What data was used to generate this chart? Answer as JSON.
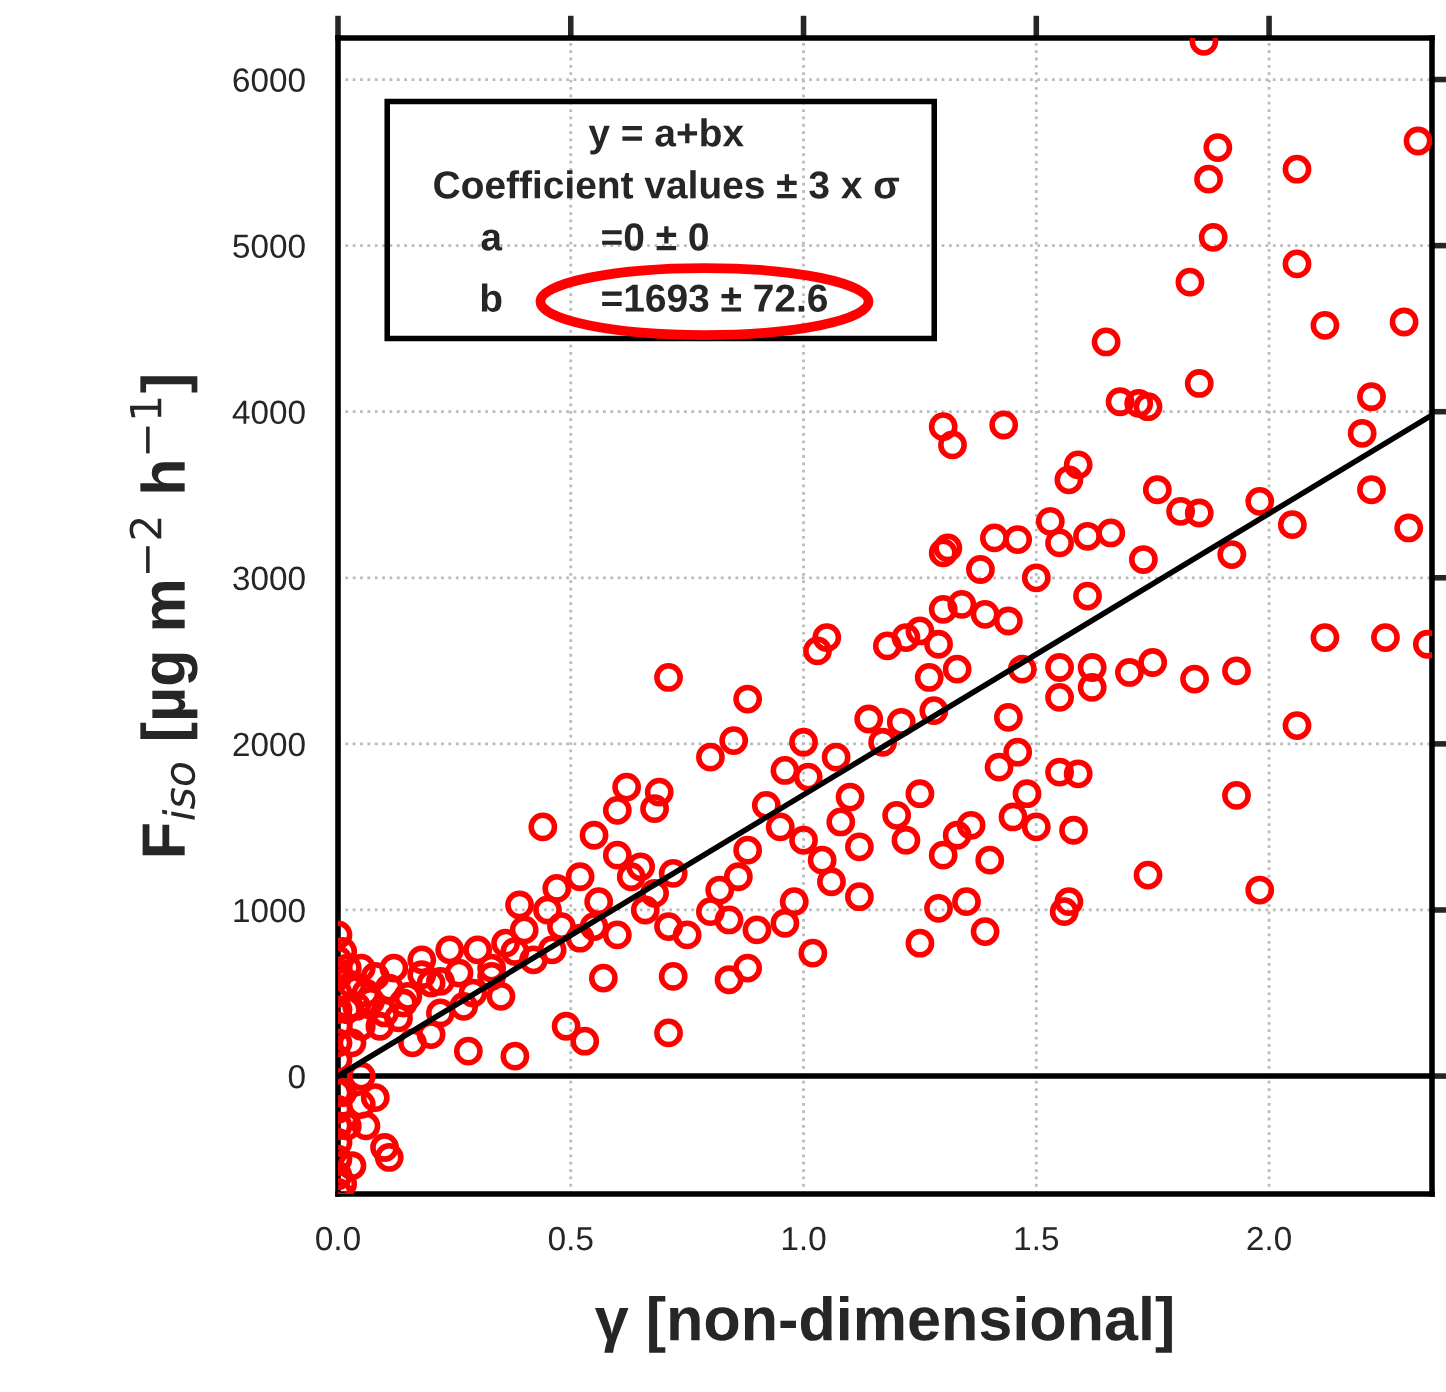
{
  "chart_data": {
    "type": "scatter",
    "xlabel": "γ [non-dimensional]",
    "ylabel": "F$_{iso}$ [µg m$^{−2}$ h$^{−1}$]",
    "xlim": [
      0,
      2.35
    ],
    "ylim": [
      -710,
      6250
    ],
    "xticks": [
      {
        "value": 0,
        "label": "0.0"
      },
      {
        "value": 0.5,
        "label": "0.5"
      },
      {
        "value": 1,
        "label": "1.0"
      },
      {
        "value": 1.5,
        "label": "1.5"
      },
      {
        "value": 2,
        "label": "2.0"
      }
    ],
    "yticks": [
      0,
      1000,
      2000,
      3000,
      4000,
      5000,
      6000
    ],
    "grid": true,
    "annotations": [
      "y = a+bx",
      "Coefficient values ± 3 x σ",
      "a",
      "=0 ± 0",
      "b",
      "=1693 ± 72.6"
    ],
    "ref_lines": [
      {
        "axis": "y",
        "value": 0,
        "color": "#000000"
      }
    ],
    "series": [
      {
        "marker": "circle",
        "color": "#ff0000",
        "x": [
          1.86,
          1.89,
          1.87,
          2.06,
          2.32,
          1.88,
          2.06,
          1.83,
          2.12,
          1.65,
          1.85,
          2.29,
          1.72,
          1.74,
          1.68,
          1.3,
          1.32,
          1.43,
          1.57,
          1.59,
          1.76,
          2.22,
          2.2,
          2.22,
          1.81,
          1.85,
          1.92,
          1.98,
          2.05,
          2.3,
          1.73,
          1.53,
          1.55,
          1.61,
          1.66,
          1.61,
          1.5,
          1.46,
          1.41,
          1.31,
          1.38,
          1.3,
          1.34,
          1.3,
          1.29,
          1.39,
          1.44,
          1.22,
          1.05,
          1.03,
          1.18,
          1.25,
          1.27,
          1.33,
          1.44,
          1.47,
          1.55,
          1.62,
          1.75,
          1.84,
          1.62,
          1.7,
          1.55,
          2.12,
          2.25,
          2.34,
          2.06,
          1.93,
          1.93,
          1.98,
          1.74,
          1.57,
          1.56,
          1.39,
          1.35,
          1.29,
          1.25,
          1.5,
          1.58,
          1.59,
          1.55,
          1.46,
          1.42,
          1.36,
          1.33,
          1.22,
          1.12,
          1.04,
          1.06,
          1.12,
          1.0,
          0.95,
          0.88,
          0.86,
          0.82,
          0.8,
          0.75,
          0.72,
          0.65,
          0.6,
          0.55,
          0.52,
          0.47,
          0.44,
          0.39,
          0.38,
          0.33,
          0.29,
          0.22,
          0.18,
          0.14,
          0.1,
          0.62,
          0.6,
          0.69,
          0.68,
          0.8,
          0.85,
          0.88,
          0.96,
          1.0,
          1.07,
          1.14,
          1.17,
          1.01,
          0.71,
          0.68,
          0.71,
          0.72,
          0.71,
          0.84,
          0.84,
          0.9,
          0.96,
          1.02,
          0.88,
          0.57,
          0.53,
          0.49,
          0.38,
          0.28,
          0.2,
          0.13,
          0.6,
          0.55,
          0.46,
          0.42,
          0.35,
          0.27,
          0.22,
          0.16,
          0.1,
          0.11,
          0.08,
          0.06,
          0.03,
          0.05,
          1.2,
          1.25,
          1.1,
          1.3,
          1.4,
          1.45,
          1.48,
          0.92,
          0.98,
          1.08,
          1.21,
          1.28,
          0,
          0,
          0,
          0,
          0,
          0,
          0,
          0,
          0,
          0,
          0,
          0,
          0,
          0,
          0,
          0.01,
          0.01,
          0.02,
          0.02,
          0.03,
          0.03,
          0.04,
          0.05,
          0.05,
          0.06,
          0.07,
          0.08,
          0.09,
          0.11,
          0.12,
          0.15,
          0.18,
          0.2,
          0.24,
          0.26,
          0.3,
          0.33,
          0.36,
          0.4,
          0.45,
          0.48,
          0.52,
          0.56,
          0.63,
          0.66,
          0.05,
          0.02,
          0.01
        ],
        "values": [
          6230,
          5590,
          5400,
          5460,
          5630,
          5050,
          4890,
          4780,
          4520,
          4420,
          4170,
          4540,
          4050,
          4030,
          4060,
          3910,
          3800,
          3920,
          3590,
          3680,
          3530,
          4090,
          3870,
          3530,
          3400,
          3390,
          3140,
          3460,
          3320,
          3300,
          3110,
          3340,
          3210,
          3250,
          3270,
          2890,
          3000,
          3230,
          3240,
          3180,
          3050,
          3150,
          2840,
          2810,
          2600,
          2780,
          2740,
          2640,
          2640,
          2560,
          2590,
          2680,
          2400,
          2450,
          2160,
          2450,
          2460,
          2460,
          2490,
          2390,
          2340,
          2430,
          2280,
          2640,
          2640,
          2600,
          2110,
          2440,
          1690,
          1120,
          1210,
          1050,
          990,
          870,
          1050,
          1010,
          800,
          1500,
          1480,
          1820,
          1830,
          1950,
          1860,
          1510,
          1450,
          1420,
          1380,
          1300,
          1170,
          1080,
          1420,
          1500,
          1360,
          1200,
          1120,
          990,
          850,
          1220,
          1260,
          1330,
          1450,
          1200,
          1130,
          1500,
          1030,
          750,
          600,
          500,
          570,
          610,
          440,
          380,
          1740,
          1600,
          1710,
          1610,
          1920,
          2020,
          2270,
          1840,
          2010,
          1920,
          2150,
          2010,
          1800,
          2400,
          1100,
          900,
          600,
          260,
          580,
          940,
          880,
          920,
          740,
          650,
          590,
          210,
          300,
          120,
          150,
          250,
          350,
          850,
          900,
          760,
          700,
          480,
          420,
          380,
          200,
          -430,
          -490,
          -130,
          -300,
          -540,
          -170,
          1570,
          1700,
          1680,
          1330,
          1300,
          1560,
          1700,
          1630,
          1050,
          1530,
          2130,
          2200,
          -700,
          -600,
          -500,
          -400,
          -300,
          -200,
          -100,
          100,
          200,
          300,
          400,
          500,
          600,
          700,
          850,
          -650,
          750,
          650,
          400,
          200,
          550,
          420,
          300,
          650,
          500,
          450,
          600,
          300,
          530,
          650,
          480,
          700,
          560,
          760,
          620,
          760,
          650,
          800,
          880,
          1000,
          900,
          830,
          1050,
          1200,
          1000,
          0,
          -300,
          -100
        ]
      },
      {
        "type": "line",
        "color": "#000000",
        "x": [
          0,
          2.35
        ],
        "values": [
          0,
          3980
        ]
      }
    ]
  }
}
